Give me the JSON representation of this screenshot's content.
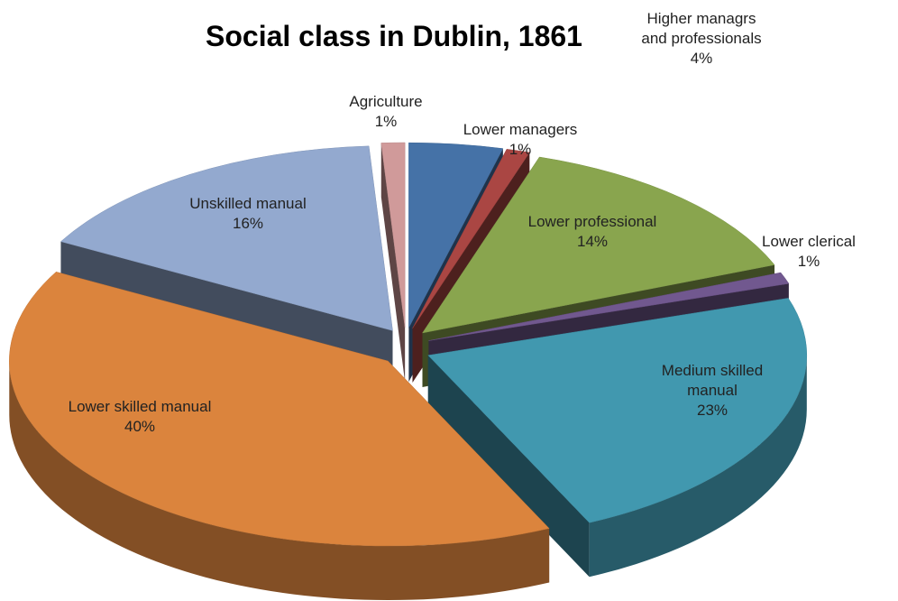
{
  "chart_data": {
    "type": "pie",
    "title": "Social class in Dublin, 1861",
    "categories": [
      "Higher managrs and professionals",
      "Lower managers",
      "Lower professional",
      "Lower clerical",
      "Medium skilled manual",
      "Lower skilled manual",
      "Unskilled manual",
      "Agriculture"
    ],
    "values": [
      4,
      1,
      14,
      1,
      23,
      40,
      16,
      1
    ],
    "value_labels": [
      "4%",
      "1%",
      "14%",
      "1%",
      "23%",
      "40%",
      "16%",
      "1%"
    ],
    "colors": [
      "#4572a7",
      "#aa4643",
      "#89a54e",
      "#71588f",
      "#4198af",
      "#db843d",
      "#93a9cf",
      "#d09a9a"
    ]
  }
}
